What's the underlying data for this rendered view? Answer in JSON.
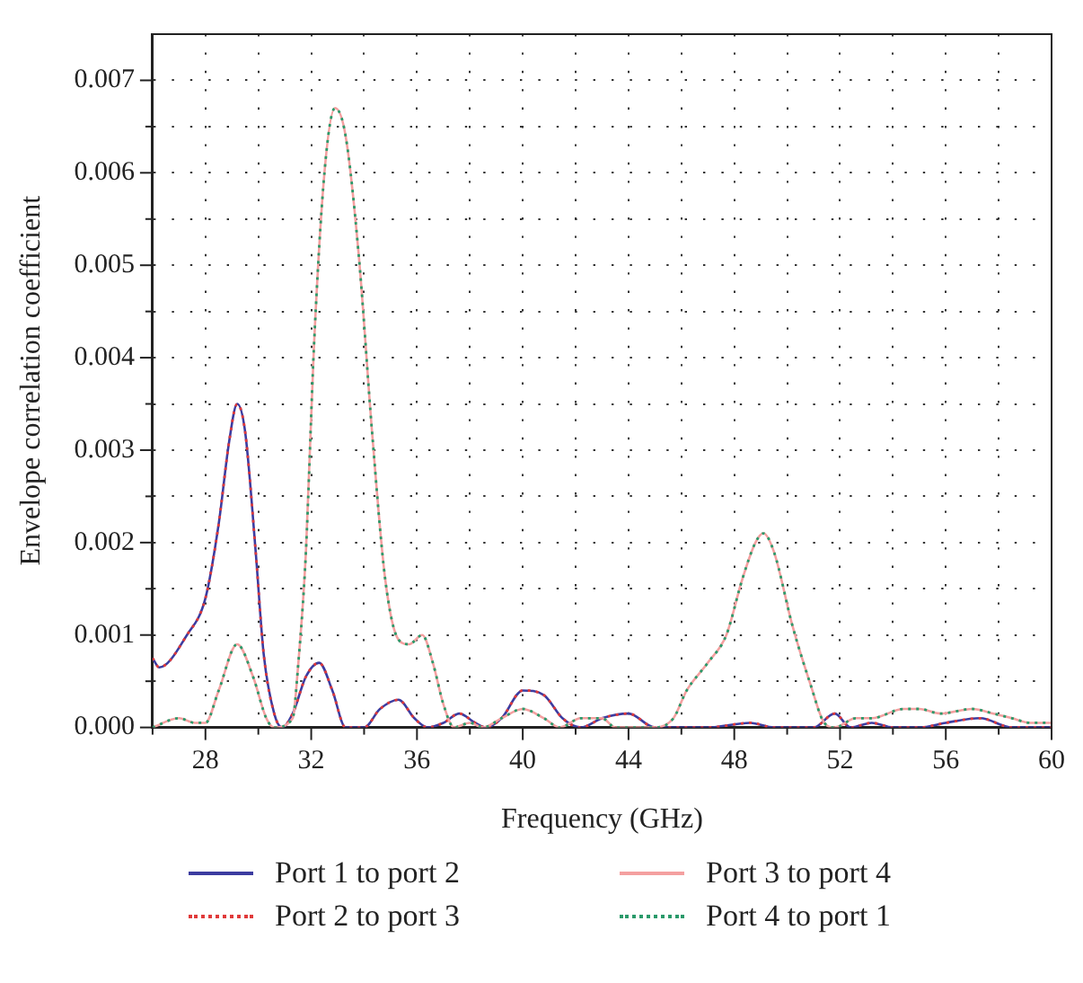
{
  "chart_data": {
    "type": "line",
    "xlabel": "Frequency (GHz)",
    "ylabel": "Envelope correlation coefficient",
    "xlim": [
      26,
      60
    ],
    "ylim": [
      0,
      0.0075
    ],
    "xticks": [
      {
        "value": 26,
        "label": null
      },
      28,
      {
        "value": 30,
        "label": null
      },
      32,
      {
        "value": 34,
        "label": null
      },
      36,
      {
        "value": 38,
        "label": null
      },
      40,
      {
        "value": 42,
        "label": null
      },
      44,
      {
        "value": 46,
        "label": null
      },
      48,
      {
        "value": 50,
        "label": null
      },
      52,
      {
        "value": 54,
        "label": null
      },
      56,
      {
        "value": 58,
        "label": null
      },
      60
    ],
    "yticks": [
      {
        "value": 0,
        "label": "0.000"
      },
      {
        "value": 0.0005,
        "label": null
      },
      {
        "value": 0.001,
        "label": "0.001"
      },
      {
        "value": 0.0015,
        "label": null
      },
      {
        "value": 0.002,
        "label": "0.002"
      },
      {
        "value": 0.0025,
        "label": null
      },
      {
        "value": 0.003,
        "label": "0.003"
      },
      {
        "value": 0.0035,
        "label": null
      },
      {
        "value": 0.004,
        "label": "0.004"
      },
      {
        "value": 0.0045,
        "label": null
      },
      {
        "value": 0.005,
        "label": "0.005"
      },
      {
        "value": 0.0055,
        "label": null
      },
      {
        "value": 0.006,
        "label": "0.006"
      },
      {
        "value": 0.0065,
        "label": null
      },
      {
        "value": 0.007,
        "label": "0.007"
      }
    ],
    "grid": true,
    "legend": "bottom",
    "marker": "none",
    "series": [
      {
        "name": "Port 1 to port 2",
        "color": "#3c3ca0",
        "line_style": "solid",
        "x": [
          26,
          26.25,
          27.3,
          28,
          28.5,
          28.9,
          29.2,
          29.5,
          29.9,
          30.2,
          30.6,
          30.9,
          31.3,
          31.8,
          32.3,
          32.8,
          33.3,
          34,
          34.6,
          35.3,
          35.9,
          36.4,
          37,
          37.6,
          38.2,
          38.6,
          39.2,
          40,
          40.8,
          41.5,
          42.2,
          43,
          44,
          45,
          46,
          47,
          48.6,
          49.5,
          51,
          51.8,
          52.4,
          53.2,
          54,
          55,
          56,
          57.3,
          58.5,
          60
        ],
        "values": [
          0.00075,
          0.00065,
          0.001,
          0.0014,
          0.0022,
          0.0031,
          0.0035,
          0.0032,
          0.0019,
          0.0008,
          0.00015,
          0,
          0.00015,
          0.00055,
          0.0007,
          0.0004,
          0,
          0,
          0.0002,
          0.0003,
          0.0001,
          0,
          5e-05,
          0.00015,
          5e-05,
          0,
          0.0001,
          0.0004,
          0.00035,
          0.0001,
          0,
          0.0001,
          0.00015,
          0,
          0,
          0,
          5e-05,
          0,
          0,
          0.00015,
          0,
          5e-05,
          0,
          0,
          5e-05,
          0.0001,
          0,
          0
        ]
      },
      {
        "name": "Port 2 to port 3",
        "color": "#e03a3a",
        "line_style": "dotted",
        "x": [
          26,
          26.25,
          27.3,
          28,
          28.5,
          28.9,
          29.2,
          29.5,
          29.9,
          30.2,
          30.6,
          30.9,
          31.3,
          31.8,
          32.3,
          32.8,
          33.3,
          34,
          34.6,
          35.3,
          35.9,
          36.4,
          37,
          37.6,
          38.2,
          38.6,
          39.2,
          40,
          40.8,
          41.5,
          42.2,
          43,
          44,
          45,
          46,
          47,
          48.6,
          49.5,
          51,
          51.8,
          52.4,
          53.2,
          54,
          55,
          56,
          57.3,
          58.5,
          60
        ],
        "values": [
          0.00075,
          0.00065,
          0.001,
          0.0014,
          0.0022,
          0.0031,
          0.0035,
          0.0032,
          0.0019,
          0.0008,
          0.00015,
          0,
          0.00015,
          0.00055,
          0.0007,
          0.0004,
          0,
          0,
          0.0002,
          0.0003,
          0.0001,
          0,
          5e-05,
          0.00015,
          5e-05,
          0,
          0.0001,
          0.0004,
          0.00035,
          0.0001,
          0,
          0.0001,
          0.00015,
          0,
          0,
          0,
          5e-05,
          0,
          0,
          0.00015,
          0,
          5e-05,
          0,
          0,
          5e-05,
          0.0001,
          0,
          0
        ]
      },
      {
        "name": "Port 3 to port 4",
        "color": "#f4a0a0",
        "line_style": "solid",
        "x": [
          26,
          27,
          27.6,
          28,
          28.5,
          29.2,
          29.8,
          30.3,
          30.6,
          31.3,
          31.5,
          31.8,
          32.1,
          32.5,
          32.9,
          33.3,
          33.8,
          34.3,
          34.8,
          35.3,
          35.7,
          36.2,
          36.6,
          37,
          37.4,
          38,
          38.5,
          39.2,
          40,
          40.8,
          41.4,
          42.2,
          43,
          43.5,
          45,
          45.7,
          46.2,
          47,
          47.7,
          48.3,
          48.8,
          49.1,
          49.5,
          50.2,
          50.9,
          51.4,
          51.8,
          52.6,
          53.2,
          54.4,
          55,
          55.8,
          57,
          57.8,
          58.5,
          59.2,
          60
        ],
        "values": [
          0,
          0.0001,
          5e-05,
          5e-05,
          0.0004,
          0.0009,
          0.00055,
          0.0001,
          0,
          0.0001,
          0.00065,
          0.0019,
          0.0041,
          0.006,
          0.0067,
          0.0064,
          0.0051,
          0.0032,
          0.0016,
          0.00095,
          0.0009,
          0.001,
          0.0007,
          0.00025,
          0,
          5e-05,
          0,
          0.0001,
          0.0002,
          0.0001,
          0,
          0.0001,
          0.0001,
          0,
          0,
          0.0001,
          0.0004,
          0.0007,
          0.001,
          0.0016,
          0.002,
          0.0021,
          0.0019,
          0.0011,
          0.00045,
          5e-05,
          0,
          0.0001,
          0.0001,
          0.0002,
          0.0002,
          0.00015,
          0.0002,
          0.00015,
          0.0001,
          5e-05,
          5e-05
        ]
      },
      {
        "name": "Port 4 to port 1",
        "color": "#2a9a6a",
        "line_style": "dotted",
        "x": [
          26,
          27,
          27.6,
          28,
          28.5,
          29.2,
          29.8,
          30.3,
          30.6,
          31.3,
          31.5,
          31.8,
          32.1,
          32.5,
          32.9,
          33.3,
          33.8,
          34.3,
          34.8,
          35.3,
          35.7,
          36.2,
          36.6,
          37,
          37.4,
          38,
          38.5,
          39.2,
          40,
          40.8,
          41.4,
          42.2,
          43,
          43.5,
          45,
          45.7,
          46.2,
          47,
          47.7,
          48.3,
          48.8,
          49.1,
          49.5,
          50.2,
          50.9,
          51.4,
          51.8,
          52.6,
          53.2,
          54.4,
          55,
          55.8,
          57,
          57.8,
          58.5,
          59.2,
          60
        ],
        "values": [
          0,
          0.0001,
          5e-05,
          5e-05,
          0.0004,
          0.0009,
          0.00055,
          0.0001,
          0,
          0.0001,
          0.00065,
          0.0019,
          0.0041,
          0.006,
          0.0067,
          0.0064,
          0.0051,
          0.0032,
          0.0016,
          0.00095,
          0.0009,
          0.001,
          0.0007,
          0.00025,
          0,
          5e-05,
          0,
          0.0001,
          0.0002,
          0.0001,
          0,
          0.0001,
          0.0001,
          0,
          0,
          0.0001,
          0.0004,
          0.0007,
          0.001,
          0.0016,
          0.002,
          0.0021,
          0.0019,
          0.0011,
          0.00045,
          5e-05,
          0,
          0.0001,
          0.0001,
          0.0002,
          0.0002,
          0.00015,
          0.0002,
          0.00015,
          0.0001,
          5e-05,
          5e-05
        ]
      }
    ]
  }
}
